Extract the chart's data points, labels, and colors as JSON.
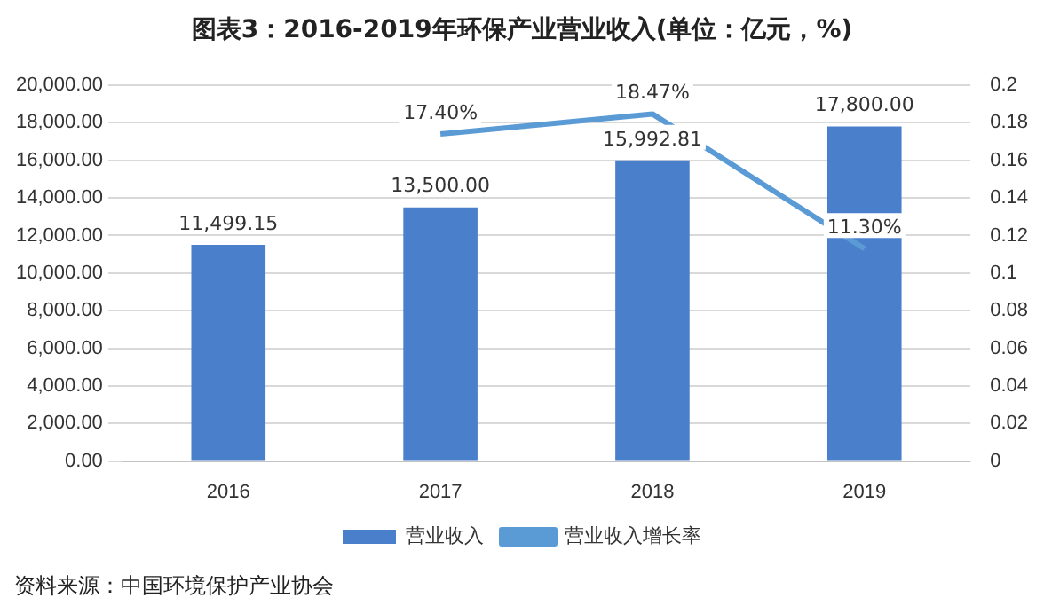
{
  "chart_data": {
    "type": "bar",
    "title": "图表3：2016-2019年环保产业营业收入(单位：亿元，%)",
    "categories": [
      "2016",
      "2017",
      "2018",
      "2019"
    ],
    "series": [
      {
        "name": "营业收入",
        "color": "#4a7fcb",
        "values": [
          11499.15,
          13500,
          15992.81,
          17800
        ],
        "value_labels": [
          "11,499.15",
          "13,500.00",
          "15,992.81",
          "17,800.00"
        ]
      },
      {
        "name": "营业收入增长率",
        "type": "line",
        "axis": "y2",
        "color": "#5b9bd5",
        "values": [
          null,
          0.174,
          0.1847,
          0.113
        ],
        "value_labels": [
          null,
          "17.40%",
          "18.47%",
          "11.30%"
        ]
      }
    ],
    "ylim": [
      0,
      20000
    ],
    "yticks": [
      {
        "value": 0,
        "label": "0.00"
      },
      {
        "value": 2000,
        "label": "2,000.00"
      },
      {
        "value": 4000,
        "label": "4,000.00"
      },
      {
        "value": 6000,
        "label": "6,000.00"
      },
      {
        "value": 8000,
        "label": "8,000.00"
      },
      {
        "value": 10000,
        "label": "10,000.00"
      },
      {
        "value": 12000,
        "label": "12,000.00"
      },
      {
        "value": 14000,
        "label": "14,000.00"
      },
      {
        "value": 16000,
        "label": "16,000.00"
      },
      {
        "value": 18000,
        "label": "18,000.00"
      },
      {
        "value": 20000,
        "label": "20,000.00"
      }
    ],
    "y2lim": [
      0,
      0.2
    ],
    "y2ticks": [
      0,
      0.02,
      0.04,
      0.06,
      0.08,
      0.1,
      0.12,
      0.14,
      0.16,
      0.18,
      0.2
    ],
    "grid": "y",
    "legend": "bottom",
    "marker": "none",
    "line_style": "solid",
    "annotations": [
      "资料来源：中国环境保护产业协会"
    ]
  }
}
